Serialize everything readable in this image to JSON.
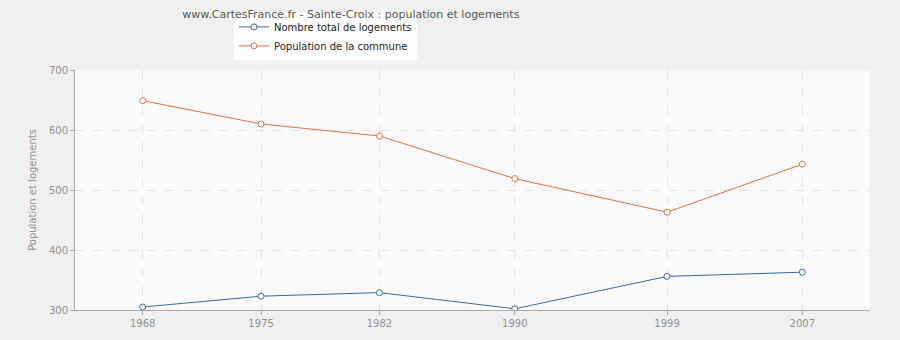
{
  "chart_data": {
    "type": "line",
    "title": "www.CartesFrance.fr - Sainte-Croix : population et logements",
    "y_label": "Population et logements",
    "x": [
      1968,
      1975,
      1982,
      1990,
      1999,
      2007
    ],
    "series": [
      {
        "name": "Nombre total de logements",
        "color": "#3a6b9c",
        "values": [
          305,
          323,
          329,
          302,
          356,
          363
        ]
      },
      {
        "name": "Population de la commune",
        "color": "#e0704a",
        "values": [
          649,
          610,
          590,
          519,
          463,
          543
        ]
      }
    ],
    "xlim": [
      1964,
      2011
    ],
    "xticks": [
      1968,
      1975,
      1982,
      1990,
      1999,
      2007
    ],
    "ylim": [
      300,
      700
    ],
    "yticks": [
      300,
      400,
      500,
      600,
      700
    ],
    "grid": true,
    "legend": "top",
    "marker": "circle",
    "line_style": "solid"
  }
}
